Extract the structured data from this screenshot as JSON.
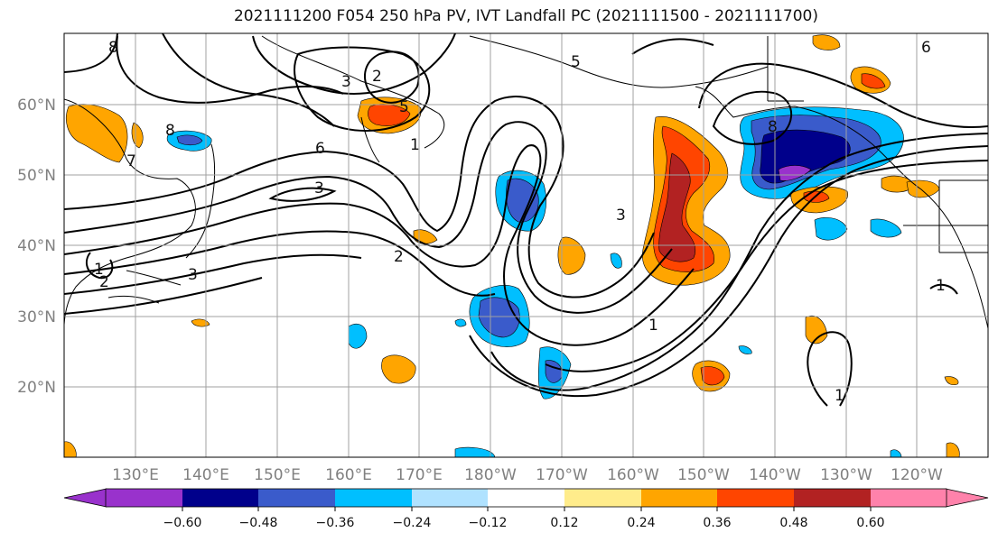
{
  "title": "2021111200 F054 250 hPa PV, IVT Landfall PC (2021111500 - 2021111700)",
  "map": {
    "lat_labels": [
      "60°N",
      "50°N",
      "40°N",
      "30°N",
      "20°N"
    ],
    "lat_values": [
      60,
      50,
      40,
      30,
      20
    ],
    "lon_labels": [
      "130°E",
      "140°E",
      "150°E",
      "160°E",
      "170°E",
      "180°W",
      "170°W",
      "160°W",
      "150°W",
      "140°W",
      "130°W",
      "120°W"
    ],
    "lon_values": [
      130,
      140,
      150,
      160,
      170,
      180,
      190,
      200,
      210,
      220,
      230,
      240
    ],
    "extent": {
      "lon_min": 120,
      "lon_max": 250,
      "lat_min": 10,
      "lat_max": 70
    },
    "contour_labels": [
      "8",
      "8",
      "3",
      "2",
      "5",
      "6",
      "7",
      "3",
      "2",
      "1",
      "2",
      "3",
      "5",
      "3",
      "8",
      "1",
      "1",
      "6",
      "1",
      "1"
    ]
  },
  "colorbar": {
    "ticks": [
      "−0.60",
      "−0.48",
      "−0.36",
      "−0.24",
      "−0.12",
      "0.12",
      "0.24",
      "0.36",
      "0.48",
      "0.60"
    ],
    "tick_values": [
      -0.6,
      -0.48,
      -0.36,
      -0.24,
      -0.12,
      0.12,
      0.24,
      0.36,
      0.48,
      0.6
    ],
    "colors": [
      "#9932CC",
      "#00008B",
      "#3A5BCB",
      "#00BFFF",
      "#B0E2FF",
      "#FFFFFF",
      "#FFEC8B",
      "#FFA500",
      "#FF4500",
      "#B22222",
      "#FF82AB"
    ]
  }
}
